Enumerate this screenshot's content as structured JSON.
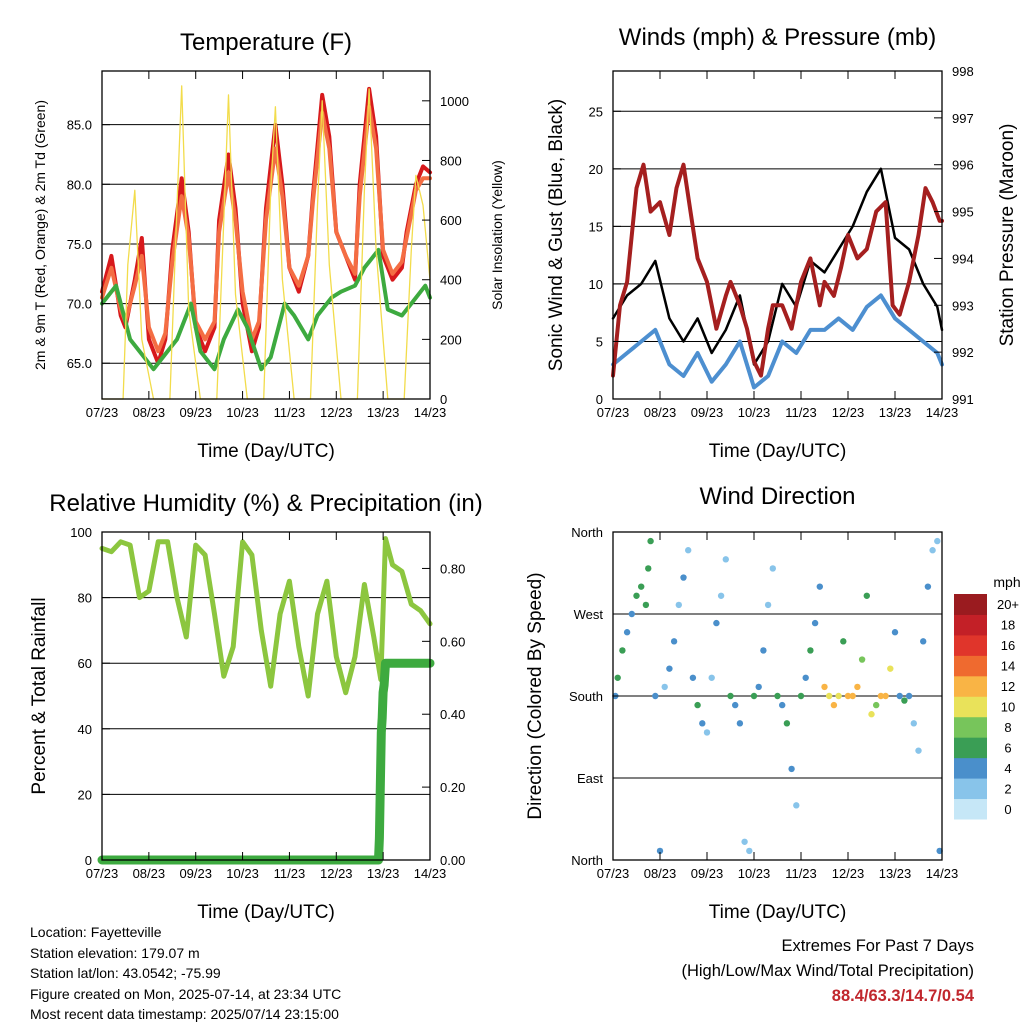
{
  "chart_data": [
    {
      "type": "line",
      "title": "Temperature (F)",
      "xlabel": "Time (Day/UTC)",
      "ylabel": "2m & 9m T (Red, Orange) & 2m Td (Green)",
      "ylabel_right": "Solar Insolation (Yellow)",
      "x_ticks": [
        "07/23",
        "08/23",
        "09/23",
        "10/23",
        "11/23",
        "12/23",
        "13/23",
        "14/23"
      ],
      "xlim": [
        0,
        7
      ],
      "ylim": [
        62,
        89.5
      ],
      "y_ticks": [
        65.0,
        70.0,
        75.0,
        80.0,
        85.0
      ],
      "ylim_right": [
        0,
        1100
      ],
      "y_ticks_right": [
        0,
        200,
        400,
        600,
        800,
        1000
      ],
      "grid": true,
      "series": [
        {
          "color": "#d7191c",
          "axis": "left",
          "x": [
            0,
            0.2,
            0.4,
            0.5,
            0.7,
            0.85,
            1,
            1.2,
            1.35,
            1.5,
            1.7,
            1.85,
            2,
            2.2,
            2.4,
            2.5,
            2.7,
            2.85,
            3,
            3.2,
            3.35,
            3.5,
            3.7,
            3.85,
            4,
            4.2,
            4.4,
            4.5,
            4.7,
            4.85,
            5,
            5.2,
            5.4,
            5.5,
            5.7,
            5.85,
            6,
            6.2,
            6.4,
            6.5,
            6.7,
            6.85,
            7
          ],
          "y": [
            71,
            74,
            69,
            68,
            72,
            75.5,
            67,
            65,
            67,
            74.5,
            80.5,
            76,
            68,
            66,
            68,
            77,
            82.5,
            78,
            70,
            66,
            68,
            78,
            85,
            80,
            73,
            71,
            74,
            79,
            87.5,
            84,
            76,
            74,
            72,
            80,
            88,
            84,
            74,
            72,
            73,
            76,
            80,
            81.5,
            81
          ]
        },
        {
          "color": "#f46d43",
          "axis": "left",
          "x": [
            0,
            0.2,
            0.4,
            0.5,
            0.7,
            0.85,
            1,
            1.2,
            1.35,
            1.5,
            1.7,
            1.85,
            2,
            2.2,
            2.4,
            2.5,
            2.7,
            2.85,
            3,
            3.2,
            3.35,
            3.5,
            3.7,
            3.85,
            4,
            4.2,
            4.4,
            4.5,
            4.7,
            4.85,
            5,
            5.2,
            5.4,
            5.5,
            5.7,
            5.85,
            6,
            6.2,
            6.4,
            6.5,
            6.7,
            6.85,
            7
          ],
          "y": [
            70.5,
            73,
            69.5,
            68.5,
            71.5,
            74,
            68,
            66,
            67.5,
            73.5,
            79,
            75.5,
            68.5,
            67,
            68.5,
            76,
            81,
            77,
            71,
            67,
            68.5,
            77,
            83,
            79,
            73,
            71.5,
            74,
            78.5,
            86,
            83,
            76,
            74,
            72.5,
            79,
            86.5,
            83,
            74.5,
            72.5,
            73.5,
            75.5,
            79.5,
            80.5,
            80.5
          ]
        },
        {
          "color": "#3daa3f",
          "axis": "left",
          "x": [
            0,
            0.3,
            0.6,
            0.9,
            1.1,
            1.4,
            1.6,
            1.9,
            2.1,
            2.4,
            2.6,
            2.9,
            3.1,
            3.4,
            3.6,
            3.9,
            4.1,
            4.4,
            4.6,
            4.9,
            5.1,
            5.4,
            5.6,
            5.9,
            6.1,
            6.4,
            6.6,
            6.9,
            7
          ],
          "y": [
            70,
            71.5,
            67,
            65.5,
            64.5,
            66,
            67,
            70,
            66,
            64.5,
            67,
            69.5,
            68,
            64.5,
            65.5,
            70,
            69,
            67,
            69,
            70.5,
            71,
            71.5,
            73,
            74.5,
            69.5,
            69,
            70,
            71.5,
            70.5
          ]
        },
        {
          "color": "#f2dc4b",
          "axis": "right",
          "x": [
            0,
            0.45,
            0.55,
            0.7,
            0.85,
            1.1,
            1.45,
            1.6,
            1.7,
            1.85,
            2.1,
            2.45,
            2.6,
            2.7,
            2.85,
            3.1,
            3.45,
            3.6,
            3.7,
            3.85,
            4.1,
            4.45,
            4.6,
            4.7,
            4.85,
            5.1,
            5.45,
            5.6,
            5.7,
            5.85,
            6.1,
            6.45,
            6.6,
            6.7,
            6.85,
            7
          ],
          "y": [
            0,
            0,
            450,
            700,
            200,
            0,
            0,
            650,
            1050,
            300,
            0,
            0,
            600,
            1020,
            350,
            0,
            0,
            700,
            980,
            400,
            0,
            0,
            650,
            1000,
            450,
            0,
            0,
            700,
            1040,
            500,
            0,
            0,
            500,
            750,
            650,
            400
          ]
        }
      ]
    },
    {
      "type": "line",
      "title": "Winds (mph) & Pressure (mb)",
      "xlabel": "Time (Day/UTC)",
      "ylabel": "Sonic Wind & Gust (Blue, Black)",
      "ylabel_right": "Station Pressure (Maroon)",
      "x_ticks": [
        "07/23",
        "08/23",
        "09/23",
        "10/23",
        "11/23",
        "12/23",
        "13/23",
        "14/23"
      ],
      "xlim": [
        0,
        7
      ],
      "ylim": [
        0,
        28.5
      ],
      "y_ticks": [
        0,
        5,
        10,
        15,
        20,
        25
      ],
      "ylim_right": [
        991,
        998
      ],
      "y_ticks_right": [
        991,
        992,
        993,
        994,
        995,
        996,
        997,
        998
      ],
      "grid": true,
      "series": [
        {
          "color": "#4d8fd0",
          "axis": "left",
          "x": [
            0,
            0.3,
            0.6,
            0.9,
            1.2,
            1.5,
            1.8,
            2.1,
            2.4,
            2.7,
            3,
            3.3,
            3.6,
            3.9,
            4.2,
            4.5,
            4.8,
            5.1,
            5.4,
            5.7,
            6,
            6.3,
            6.6,
            6.9,
            7
          ],
          "y": [
            3,
            4,
            5,
            6,
            3,
            2,
            4,
            1.5,
            3,
            5,
            1,
            2,
            5,
            4,
            6,
            6,
            7,
            6,
            8,
            9,
            7,
            6,
            5,
            4,
            3
          ]
        },
        {
          "color": "#000000",
          "axis": "left",
          "x": [
            0,
            0.3,
            0.6,
            0.9,
            1.2,
            1.5,
            1.8,
            2.1,
            2.4,
            2.7,
            3,
            3.3,
            3.6,
            3.9,
            4.2,
            4.5,
            4.8,
            5.1,
            5.4,
            5.7,
            6,
            6.3,
            6.6,
            6.9,
            7
          ],
          "y": [
            7,
            9,
            10,
            12,
            7,
            5,
            7,
            4,
            6,
            9,
            3,
            5,
            10,
            8,
            12,
            11,
            13,
            15,
            18,
            20,
            14,
            13,
            10,
            8,
            6
          ]
        },
        {
          "color": "#a51f1f",
          "axis": "right",
          "x": [
            0,
            0.15,
            0.3,
            0.5,
            0.65,
            0.8,
            1,
            1.2,
            1.35,
            1.5,
            1.65,
            1.8,
            2,
            2.2,
            2.4,
            2.5,
            2.7,
            2.85,
            3,
            3.15,
            3.3,
            3.4,
            3.6,
            3.8,
            4,
            4.2,
            4.4,
            4.5,
            4.7,
            4.85,
            5,
            5.2,
            5.4,
            5.6,
            5.8,
            5.95,
            6.1,
            6.3,
            6.5,
            6.65,
            6.8,
            6.95,
            7
          ],
          "y": [
            991.5,
            993,
            993.5,
            995.5,
            996,
            995,
            995.2,
            994.5,
            995.5,
            996,
            995,
            994,
            993.5,
            992.5,
            993.2,
            993.5,
            993,
            992.5,
            991.8,
            991.5,
            992.5,
            993,
            993,
            992.5,
            993.5,
            994,
            993,
            993.5,
            993.2,
            993.8,
            994.5,
            994,
            994.2,
            995,
            995.2,
            993,
            992.8,
            993.5,
            994.5,
            995.5,
            995.2,
            994.8,
            994.8
          ]
        }
      ]
    },
    {
      "type": "line",
      "title": "Relative Humidity (%) & Precipitation (in)",
      "xlabel": "Time (Day/UTC)",
      "ylabel": "Percent & Total Rainfall",
      "x_ticks": [
        "07/23",
        "08/23",
        "09/23",
        "10/23",
        "11/23",
        "12/23",
        "13/23",
        "14/23"
      ],
      "xlim": [
        0,
        7
      ],
      "ylim": [
        0,
        100
      ],
      "y_ticks": [
        0,
        20,
        40,
        60,
        80,
        100
      ],
      "ylim_right": [
        0,
        0.9
      ],
      "y_ticks_right": [
        "0.00",
        "0.20",
        "0.40",
        "0.60",
        "0.80"
      ],
      "grid": true,
      "series": [
        {
          "color": "#8cc63f",
          "axis": "left",
          "x": [
            0,
            0.2,
            0.4,
            0.6,
            0.8,
            1,
            1.2,
            1.4,
            1.6,
            1.8,
            2,
            2.2,
            2.4,
            2.6,
            2.8,
            3,
            3.2,
            3.4,
            3.6,
            3.8,
            4,
            4.2,
            4.4,
            4.6,
            4.8,
            5,
            5.2,
            5.4,
            5.6,
            5.8,
            5.95,
            6.05,
            6.2,
            6.4,
            6.6,
            6.8,
            7
          ],
          "y": [
            95,
            94,
            97,
            96,
            80,
            82,
            97,
            97,
            80,
            68,
            96,
            93,
            75,
            56,
            65,
            97,
            93,
            70,
            53,
            75,
            85,
            65,
            50,
            75,
            85,
            62,
            51,
            62,
            84,
            68,
            55,
            98,
            90,
            88,
            78,
            76,
            72
          ]
        },
        {
          "color": "#3daa3f",
          "axis": "right",
          "x": [
            0,
            1,
            2,
            3,
            4,
            5,
            5.9,
            5.92,
            5.94,
            5.96,
            5.98,
            6,
            6.02,
            6.05,
            6.5,
            7
          ],
          "y": [
            0,
            0,
            0,
            0,
            0,
            0,
            0,
            0.06,
            0.2,
            0.35,
            0.39,
            0.46,
            0.48,
            0.54,
            0.54,
            0.54
          ]
        }
      ]
    },
    {
      "type": "scatter",
      "title": "Wind Direction",
      "xlabel": "Time (Day/UTC)",
      "ylabel": "Direction (Colored By Speed)",
      "x_ticks": [
        "07/23",
        "08/23",
        "09/23",
        "10/23",
        "11/23",
        "12/23",
        "13/23",
        "14/23"
      ],
      "xlim": [
        0,
        7
      ],
      "y_ticks": [
        "North",
        "East",
        "South",
        "West",
        "North"
      ],
      "ylim": [
        0,
        360
      ],
      "grid": true,
      "colorbar": {
        "title": "mph",
        "labels": [
          "0",
          "2",
          "4",
          "6",
          "8",
          "10",
          "12",
          "14",
          "16",
          "18",
          "20+"
        ],
        "colors": [
          "#c6e7f7",
          "#88c4ea",
          "#4a8fcb",
          "#3a9e55",
          "#77c55b",
          "#e9e25a",
          "#f9b445",
          "#ef6a2f",
          "#e0352b",
          "#c32027",
          "#9a1b1f"
        ]
      },
      "series": [
        {
          "x": [
            0.05,
            0.1,
            0.2,
            0.3,
            0.4,
            0.5,
            0.6,
            0.7,
            0.75,
            0.8,
            0.9,
            1,
            1.1,
            1.2,
            1.3,
            1.4,
            1.5,
            1.6,
            1.7,
            1.8,
            1.9,
            2,
            2.1,
            2.2,
            2.3,
            2.4,
            2.5,
            2.6,
            2.7,
            2.8,
            2.9,
            3,
            3.1,
            3.2,
            3.3,
            3.4,
            3.5,
            3.6,
            3.7,
            3.8,
            3.9,
            4,
            4.1,
            4.2,
            4.3,
            4.4,
            4.5,
            4.6,
            4.7,
            4.8,
            4.9,
            5,
            5.1,
            5.2,
            5.3,
            5.4,
            5.5,
            5.6,
            5.7,
            5.8,
            5.9,
            6,
            6.1,
            6.2,
            6.3,
            6.4,
            6.5,
            6.6,
            6.7,
            6.8,
            6.9,
            6.95
          ],
          "y": [
            180,
            200,
            230,
            250,
            270,
            290,
            300,
            280,
            320,
            350,
            180,
            10,
            190,
            210,
            240,
            280,
            310,
            340,
            200,
            170,
            150,
            140,
            200,
            260,
            290,
            330,
            180,
            170,
            150,
            20,
            10,
            180,
            190,
            230,
            280,
            320,
            180,
            170,
            150,
            100,
            60,
            180,
            200,
            230,
            260,
            300,
            190,
            180,
            170,
            180,
            240,
            180,
            180,
            190,
            220,
            290,
            160,
            170,
            180,
            180,
            210,
            250,
            180,
            175,
            180,
            150,
            120,
            240,
            300,
            340,
            350,
            10
          ],
          "speed": [
            4,
            7,
            6,
            5,
            4,
            6,
            7,
            6,
            7,
            6,
            5,
            4,
            3,
            4,
            5,
            3,
            4,
            3,
            4,
            6,
            4,
            3,
            2,
            4,
            3,
            2,
            6,
            5,
            4,
            3,
            2,
            6,
            5,
            4,
            3,
            2,
            6,
            5,
            7,
            4,
            3,
            7,
            5,
            6,
            4,
            5,
            12,
            11,
            12,
            10,
            7,
            12,
            13,
            12,
            8,
            6,
            11,
            9,
            13,
            12,
            10,
            4,
            5,
            7,
            4,
            3,
            2,
            5,
            4,
            3,
            2,
            4
          ]
        }
      ]
    }
  ],
  "info": {
    "location": "Location: Fayetteville",
    "elevation": "Station elevation: 179.07 m",
    "latlon": "Station lat/lon: 43.0542; -75.99",
    "created": "Figure created on Mon, 2025-07-14, at 23:34 UTC",
    "recent": "Most recent data timestamp: 2025/07/14 23:15:00"
  },
  "extremes": {
    "line1": "Extremes For Past 7 Days",
    "line2": "(High/Low/Max Wind/Total Precipitation)",
    "values": "88.4/63.3/14.7/0.54"
  }
}
